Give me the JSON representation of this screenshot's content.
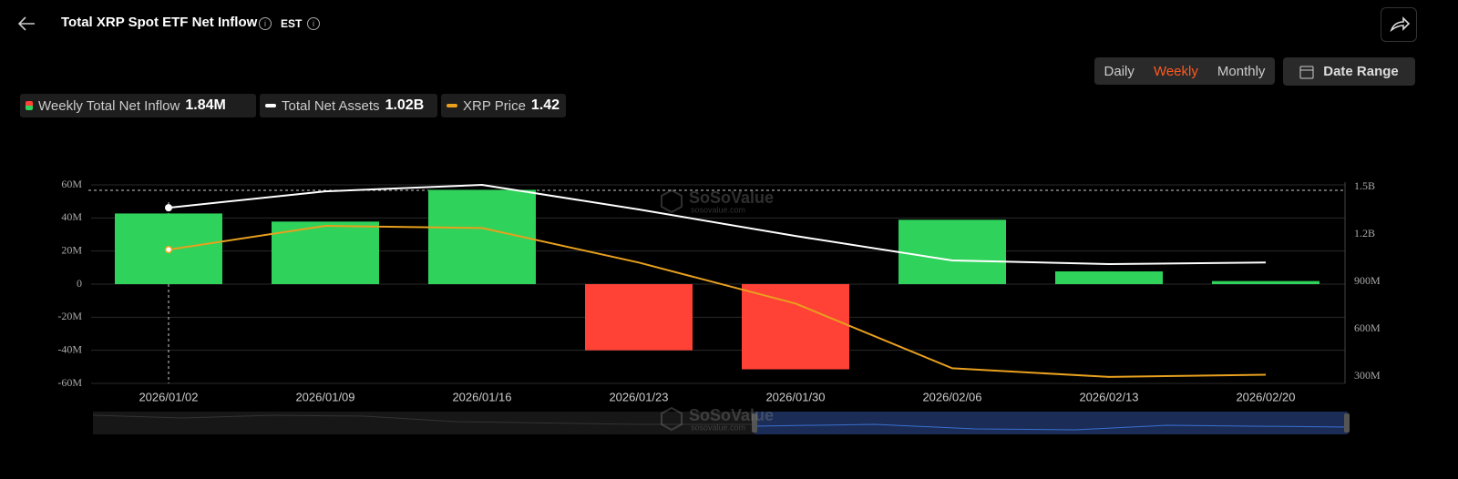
{
  "header": {
    "title": "Total XRP Spot ETF Net Inflow",
    "timezone": "EST"
  },
  "controls": {
    "periods": [
      "Daily",
      "Weekly",
      "Monthly"
    ],
    "date_range": "Date Range"
  },
  "watermark": {
    "brand": "SoSoValue",
    "url": "sosovalue.com"
  },
  "chart_data": {
    "type": "bar",
    "categories": [
      "2026/01/02",
      "2026/01/09",
      "2026/01/16",
      "2026/01/23",
      "2026/01/30",
      "2026/02/06",
      "2026/02/13",
      "2026/02/20"
    ],
    "series": [
      {
        "name": "Weekly Total Net Inflow",
        "latest_label": "1.84M",
        "color": "#2fd35b",
        "negative_color": "#ff4136",
        "values": [
          42.7,
          37.8,
          57,
          -40,
          -51.5,
          38.9,
          7.7,
          1.84
        ]
      },
      {
        "name": "Total Net Assets",
        "latest_label": "1.02B",
        "color": "#ffffff",
        "axis": "y2",
        "values": [
          1367,
          1471,
          1512,
          1356,
          1188,
          1033,
          1010,
          1020
        ]
      },
      {
        "name": "XRP Price",
        "latest_label": "1.42",
        "color": "#e8a01e",
        "axis": "y3",
        "values": [
          2.0,
          2.11,
          2.1,
          1.94,
          1.75,
          1.45,
          1.41,
          1.42
        ]
      }
    ],
    "ylim": [
      -60,
      60
    ],
    "yticks": [
      {
        "value": -60,
        "label": "-60M"
      },
      {
        "value": -40,
        "label": "-40M"
      },
      {
        "value": -20,
        "label": "-20M"
      },
      0,
      {
        "value": 20,
        "label": "20M"
      },
      {
        "value": 40,
        "label": "40M"
      },
      {
        "value": 60,
        "label": "60M"
      }
    ],
    "y2lim": [
      254,
      1512
    ],
    "y2ticks": [
      {
        "value": 300,
        "label": "300M"
      },
      {
        "value": 600,
        "label": "600M"
      },
      {
        "value": 900,
        "label": "900M"
      },
      {
        "value": 1200,
        "label": "1.2B"
      },
      {
        "value": 1500,
        "label": "1.5B"
      }
    ],
    "y3lim": [
      1.38,
      2.3
    ],
    "grid": true
  }
}
